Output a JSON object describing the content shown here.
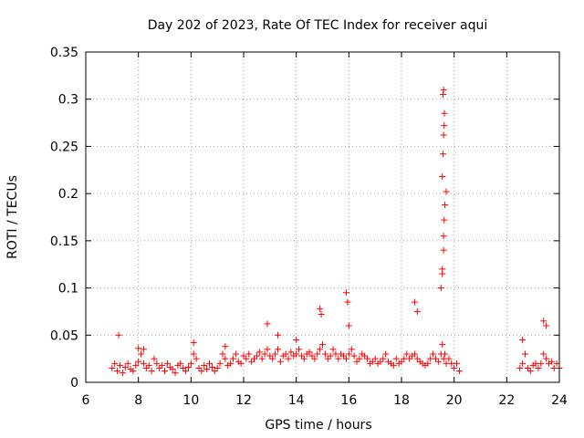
{
  "chart_data": {
    "type": "scatter",
    "title": "Day 202 of 2023, Rate Of TEC Index for receiver aqui",
    "xlabel": "GPS time / hours",
    "ylabel": "ROTI / TECUs",
    "xlim": [
      6,
      24
    ],
    "ylim": [
      0,
      0.35
    ],
    "x_ticks": [
      "6",
      "8",
      "10",
      "12",
      "14",
      "16",
      "18",
      "20",
      "22",
      "24"
    ],
    "y_ticks": [
      "0",
      "0.05",
      "0.1",
      "0.15",
      "0.2",
      "0.25",
      "0.3",
      "0.35"
    ],
    "grid": true,
    "marker": "+",
    "color": "#ff0000",
    "series": [
      {
        "x": [
          7.0,
          7.1,
          7.2,
          7.3,
          7.4,
          7.5,
          7.6,
          7.7,
          7.8,
          7.9,
          8.0,
          8.1,
          8.2,
          8.3,
          8.4,
          8.5,
          8.6,
          8.7,
          8.8,
          8.9,
          9.0,
          9.1,
          9.2,
          9.3,
          9.4,
          9.5,
          9.6,
          9.7,
          9.8,
          9.9,
          10.0,
          10.1,
          10.2,
          10.3,
          10.4,
          10.5,
          10.6,
          10.7,
          10.8,
          10.9,
          11.0,
          11.1,
          11.2,
          11.3,
          11.4,
          11.5,
          11.6,
          11.7,
          11.8,
          11.9,
          12.0,
          12.1,
          12.2,
          12.3,
          12.4,
          12.5,
          12.6,
          12.7,
          12.8,
          12.9,
          13.0,
          13.1,
          13.2,
          13.3,
          13.4,
          13.5,
          13.6,
          13.7,
          13.8,
          13.9,
          14.0,
          14.1,
          14.2,
          14.3,
          14.4,
          14.5,
          14.6,
          14.7,
          14.8,
          14.9,
          15.0,
          15.1,
          15.2,
          15.3,
          15.4,
          15.5,
          15.6,
          15.7,
          15.8,
          15.9,
          16.0,
          16.1,
          16.2,
          16.3,
          16.4,
          16.5,
          16.6,
          16.7,
          16.8,
          16.9,
          17.0,
          17.1,
          17.2,
          17.3,
          17.4,
          17.5,
          17.6,
          17.7,
          17.8,
          17.9,
          18.0,
          18.1,
          18.2,
          18.3,
          18.4,
          18.5,
          18.6,
          18.7,
          18.8,
          18.9,
          19.0,
          19.1,
          19.2,
          19.3,
          19.4,
          19.5,
          19.55,
          19.6,
          19.65,
          19.7,
          19.8,
          19.9,
          20.0,
          20.1,
          20.2,
          22.5,
          22.6,
          22.7,
          22.8,
          22.9,
          23.0,
          23.1,
          23.2,
          23.3,
          23.4,
          23.5,
          23.6,
          23.7,
          23.8,
          23.9,
          24.0,
          7.25,
          8.0,
          8.2,
          10.1,
          11.3,
          12.9,
          13.3,
          14.0,
          14.9,
          14.95,
          15.9,
          15.95,
          16.0,
          18.5,
          18.6,
          19.5,
          19.55,
          19.6,
          19.6,
          19.62,
          19.65,
          19.7,
          19.55,
          19.58,
          19.6,
          19.62,
          19.63,
          19.58,
          19.6,
          19.55,
          22.6,
          23.4,
          23.5
        ],
        "y": [
          0.015,
          0.02,
          0.012,
          0.018,
          0.01,
          0.016,
          0.02,
          0.014,
          0.012,
          0.018,
          0.022,
          0.03,
          0.02,
          0.015,
          0.018,
          0.012,
          0.025,
          0.02,
          0.015,
          0.018,
          0.012,
          0.02,
          0.016,
          0.014,
          0.01,
          0.018,
          0.02,
          0.015,
          0.012,
          0.016,
          0.02,
          0.03,
          0.025,
          0.015,
          0.012,
          0.018,
          0.014,
          0.02,
          0.016,
          0.012,
          0.015,
          0.02,
          0.03,
          0.025,
          0.018,
          0.02,
          0.025,
          0.03,
          0.022,
          0.02,
          0.028,
          0.025,
          0.03,
          0.022,
          0.025,
          0.028,
          0.032,
          0.025,
          0.03,
          0.035,
          0.028,
          0.025,
          0.03,
          0.035,
          0.022,
          0.028,
          0.03,
          0.025,
          0.032,
          0.028,
          0.03,
          0.035,
          0.028,
          0.025,
          0.03,
          0.032,
          0.028,
          0.025,
          0.03,
          0.035,
          0.04,
          0.03,
          0.025,
          0.028,
          0.035,
          0.03,
          0.025,
          0.03,
          0.028,
          0.025,
          0.03,
          0.035,
          0.028,
          0.022,
          0.025,
          0.03,
          0.028,
          0.025,
          0.02,
          0.022,
          0.025,
          0.02,
          0.022,
          0.025,
          0.03,
          0.022,
          0.02,
          0.018,
          0.025,
          0.02,
          0.022,
          0.025,
          0.03,
          0.025,
          0.028,
          0.03,
          0.025,
          0.022,
          0.02,
          0.018,
          0.02,
          0.025,
          0.03,
          0.025,
          0.022,
          0.03,
          0.04,
          0.025,
          0.03,
          0.02,
          0.025,
          0.02,
          0.015,
          0.02,
          0.012,
          0.015,
          0.02,
          0.03,
          0.015,
          0.012,
          0.018,
          0.02,
          0.015,
          0.02,
          0.03,
          0.025,
          0.02,
          0.022,
          0.015,
          0.02,
          0.015,
          0.05,
          0.036,
          0.035,
          0.042,
          0.038,
          0.062,
          0.05,
          0.045,
          0.078,
          0.072,
          0.095,
          0.085,
          0.06,
          0.085,
          0.075,
          0.1,
          0.115,
          0.14,
          0.155,
          0.172,
          0.188,
          0.202,
          0.218,
          0.242,
          0.262,
          0.272,
          0.285,
          0.305,
          0.31,
          0.12,
          0.045,
          0.065,
          0.06
        ]
      }
    ]
  }
}
